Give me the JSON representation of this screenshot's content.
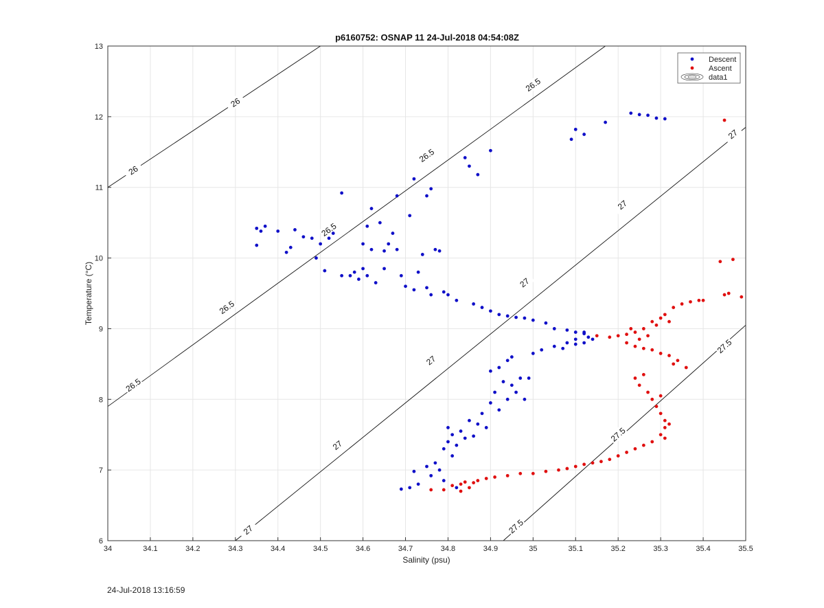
{
  "chart_data": {
    "type": "scatter",
    "title": "p6160752: OSNAP 11 24-Jul-2018 04:54:08Z",
    "xlabel": "Salinity (psu)",
    "ylabel": "Temperature (°C)",
    "xlim": [
      34,
      35.5
    ],
    "ylim": [
      6,
      13
    ],
    "xticks": [
      "34",
      "34.1",
      "34.2",
      "34.3",
      "34.4",
      "34.5",
      "34.6",
      "34.7",
      "34.8",
      "34.9",
      "35",
      "35.1",
      "35.2",
      "35.3",
      "35.4",
      "35.5"
    ],
    "yticks": [
      "6",
      "7",
      "8",
      "9",
      "10",
      "11",
      "12",
      "13"
    ],
    "grid": true,
    "legend": {
      "placement": "top-right",
      "entries": [
        "Descent",
        "Ascent",
        "data1"
      ]
    },
    "colors": {
      "descent": "#1010c8",
      "ascent": "#e01010",
      "contour": "#111111"
    },
    "contours": [
      {
        "level": "26",
        "points": [
          [
            34.0,
            11.0
          ],
          [
            34.5,
            13.0
          ]
        ],
        "label_at": [
          [
            34.06,
            11.24
          ],
          [
            34.3,
            12.2
          ]
        ]
      },
      {
        "level": "26.5",
        "points": [
          [
            34.0,
            7.9
          ],
          [
            35.17,
            13.0
          ]
        ],
        "label_at": [
          [
            34.06,
            8.2
          ],
          [
            34.28,
            9.3
          ],
          [
            34.52,
            10.4
          ],
          [
            34.75,
            11.45
          ],
          [
            35.0,
            12.45
          ]
        ]
      },
      {
        "level": "27",
        "points": [
          [
            34.3,
            6.0
          ],
          [
            35.5,
            11.85
          ]
        ],
        "label_at": [
          [
            34.33,
            6.15
          ],
          [
            34.54,
            7.35
          ],
          [
            34.76,
            8.55
          ],
          [
            34.98,
            9.65
          ],
          [
            35.21,
            10.75
          ],
          [
            35.47,
            11.75
          ]
        ]
      },
      {
        "level": "27.5",
        "points": [
          [
            34.93,
            6.0
          ],
          [
            35.5,
            9.05
          ]
        ],
        "label_at": [
          [
            34.96,
            6.2
          ],
          [
            35.2,
            7.5
          ],
          [
            35.45,
            8.75
          ]
        ]
      }
    ],
    "series": [
      {
        "name": "Descent",
        "points": [
          [
            34.35,
            10.18
          ],
          [
            34.35,
            10.42
          ],
          [
            34.37,
            10.45
          ],
          [
            34.36,
            10.38
          ],
          [
            34.4,
            10.38
          ],
          [
            34.42,
            10.08
          ],
          [
            34.43,
            10.15
          ],
          [
            34.44,
            10.4
          ],
          [
            34.46,
            10.3
          ],
          [
            34.48,
            10.28
          ],
          [
            34.49,
            10.0
          ],
          [
            34.5,
            10.2
          ],
          [
            34.51,
            9.82
          ],
          [
            34.52,
            10.28
          ],
          [
            34.53,
            10.35
          ],
          [
            34.55,
            10.92
          ],
          [
            34.55,
            9.75
          ],
          [
            34.57,
            9.75
          ],
          [
            34.58,
            9.8
          ],
          [
            34.59,
            9.7
          ],
          [
            34.6,
            10.2
          ],
          [
            34.6,
            9.85
          ],
          [
            34.61,
            10.45
          ],
          [
            34.61,
            9.75
          ],
          [
            34.62,
            10.7
          ],
          [
            34.62,
            10.12
          ],
          [
            34.63,
            9.65
          ],
          [
            34.64,
            10.5
          ],
          [
            34.65,
            9.85
          ],
          [
            34.65,
            10.1
          ],
          [
            34.66,
            10.2
          ],
          [
            34.67,
            10.35
          ],
          [
            34.68,
            10.12
          ],
          [
            34.68,
            10.88
          ],
          [
            34.69,
            9.75
          ],
          [
            34.7,
            9.6
          ],
          [
            34.71,
            10.6
          ],
          [
            34.72,
            11.12
          ],
          [
            34.72,
            9.55
          ],
          [
            34.73,
            9.8
          ],
          [
            34.74,
            10.05
          ],
          [
            34.75,
            10.88
          ],
          [
            34.76,
            10.98
          ],
          [
            34.77,
            10.12
          ],
          [
            34.78,
            10.1
          ],
          [
            34.75,
            9.58
          ],
          [
            34.76,
            9.48
          ],
          [
            34.79,
            9.52
          ],
          [
            34.8,
            9.48
          ],
          [
            34.82,
            9.4
          ],
          [
            34.84,
            11.42
          ],
          [
            34.85,
            11.3
          ],
          [
            34.87,
            11.18
          ],
          [
            34.86,
            9.35
          ],
          [
            34.88,
            9.3
          ],
          [
            34.9,
            9.25
          ],
          [
            34.9,
            11.52
          ],
          [
            34.92,
            9.2
          ],
          [
            34.94,
            9.18
          ],
          [
            34.96,
            9.16
          ],
          [
            34.98,
            9.15
          ],
          [
            35.0,
            9.12
          ],
          [
            35.03,
            9.08
          ],
          [
            35.05,
            9.0
          ],
          [
            35.08,
            8.98
          ],
          [
            35.1,
            8.95
          ],
          [
            35.12,
            8.93
          ],
          [
            35.13,
            8.88
          ],
          [
            35.14,
            8.85
          ],
          [
            35.12,
            8.8
          ],
          [
            35.1,
            8.78
          ],
          [
            35.09,
            11.68
          ],
          [
            35.1,
            11.82
          ],
          [
            35.12,
            11.75
          ],
          [
            35.17,
            11.92
          ],
          [
            35.23,
            12.05
          ],
          [
            35.25,
            12.03
          ],
          [
            35.27,
            12.02
          ],
          [
            35.29,
            11.98
          ],
          [
            35.31,
            11.97
          ],
          [
            34.69,
            6.73
          ],
          [
            34.71,
            6.75
          ],
          [
            34.72,
            6.98
          ],
          [
            34.73,
            6.8
          ],
          [
            34.75,
            7.05
          ],
          [
            34.76,
            6.92
          ],
          [
            34.77,
            7.1
          ],
          [
            34.78,
            7.0
          ],
          [
            34.79,
            7.3
          ],
          [
            34.79,
            6.85
          ],
          [
            34.8,
            7.4
          ],
          [
            34.8,
            7.6
          ],
          [
            34.81,
            7.2
          ],
          [
            34.81,
            7.5
          ],
          [
            34.82,
            7.35
          ],
          [
            34.82,
            6.75
          ],
          [
            34.83,
            7.55
          ],
          [
            34.84,
            7.45
          ],
          [
            34.85,
            7.7
          ],
          [
            34.86,
            7.48
          ],
          [
            34.87,
            7.65
          ],
          [
            34.88,
            7.8
          ],
          [
            34.89,
            7.6
          ],
          [
            34.9,
            7.95
          ],
          [
            34.9,
            8.4
          ],
          [
            34.91,
            8.1
          ],
          [
            34.92,
            8.45
          ],
          [
            34.92,
            7.85
          ],
          [
            34.93,
            8.25
          ],
          [
            34.94,
            8.55
          ],
          [
            34.94,
            8.0
          ],
          [
            34.95,
            8.2
          ],
          [
            34.95,
            8.6
          ],
          [
            34.96,
            8.1
          ],
          [
            34.97,
            8.3
          ],
          [
            34.98,
            8.0
          ],
          [
            34.99,
            8.3
          ],
          [
            35.0,
            8.65
          ],
          [
            35.02,
            8.7
          ],
          [
            35.05,
            8.75
          ],
          [
            35.07,
            8.72
          ],
          [
            35.08,
            8.8
          ],
          [
            35.1,
            8.85
          ],
          [
            35.12,
            8.95
          ]
        ]
      },
      {
        "name": "Ascent",
        "points": [
          [
            35.15,
            8.9
          ],
          [
            35.18,
            8.88
          ],
          [
            35.2,
            8.9
          ],
          [
            35.22,
            8.92
          ],
          [
            35.23,
            9.0
          ],
          [
            35.24,
            8.95
          ],
          [
            35.25,
            8.85
          ],
          [
            35.26,
            9.0
          ],
          [
            35.27,
            8.9
          ],
          [
            35.28,
            9.1
          ],
          [
            35.29,
            9.05
          ],
          [
            35.3,
            9.15
          ],
          [
            35.31,
            9.2
          ],
          [
            35.32,
            9.1
          ],
          [
            35.33,
            9.3
          ],
          [
            35.35,
            9.35
          ],
          [
            35.37,
            9.38
          ],
          [
            35.39,
            9.4
          ],
          [
            35.4,
            9.4
          ],
          [
            35.45,
            9.48
          ],
          [
            35.49,
            9.45
          ],
          [
            35.46,
            9.5
          ],
          [
            35.44,
            9.95
          ],
          [
            35.47,
            9.98
          ],
          [
            35.45,
            11.95
          ],
          [
            35.22,
            8.8
          ],
          [
            35.24,
            8.75
          ],
          [
            35.26,
            8.72
          ],
          [
            35.28,
            8.7
          ],
          [
            35.3,
            8.65
          ],
          [
            35.32,
            8.62
          ],
          [
            35.34,
            8.55
          ],
          [
            35.33,
            8.5
          ],
          [
            35.36,
            8.45
          ],
          [
            35.24,
            8.3
          ],
          [
            35.25,
            8.2
          ],
          [
            35.26,
            8.35
          ],
          [
            35.27,
            8.1
          ],
          [
            35.28,
            8.0
          ],
          [
            35.29,
            7.9
          ],
          [
            35.3,
            8.05
          ],
          [
            35.3,
            7.8
          ],
          [
            35.31,
            7.7
          ],
          [
            35.31,
            7.6
          ],
          [
            35.32,
            7.65
          ],
          [
            35.3,
            7.5
          ],
          [
            35.31,
            7.45
          ],
          [
            35.28,
            7.4
          ],
          [
            35.26,
            7.35
          ],
          [
            35.24,
            7.3
          ],
          [
            35.22,
            7.25
          ],
          [
            35.2,
            7.2
          ],
          [
            35.18,
            7.15
          ],
          [
            35.16,
            7.12
          ],
          [
            35.14,
            7.1
          ],
          [
            35.12,
            7.08
          ],
          [
            35.1,
            7.05
          ],
          [
            35.08,
            7.02
          ],
          [
            35.06,
            7.0
          ],
          [
            35.03,
            6.98
          ],
          [
            35.0,
            6.95
          ],
          [
            34.97,
            6.95
          ],
          [
            34.94,
            6.92
          ],
          [
            34.91,
            6.9
          ],
          [
            34.89,
            6.88
          ],
          [
            34.87,
            6.85
          ],
          [
            34.84,
            6.83
          ],
          [
            34.83,
            6.8
          ],
          [
            34.81,
            6.78
          ],
          [
            34.79,
            6.72
          ],
          [
            34.76,
            6.72
          ],
          [
            34.83,
            6.7
          ],
          [
            34.85,
            6.75
          ],
          [
            34.86,
            6.82
          ]
        ]
      }
    ]
  },
  "footer": {
    "timestamp": "24-Jul-2018 13:16:59"
  }
}
